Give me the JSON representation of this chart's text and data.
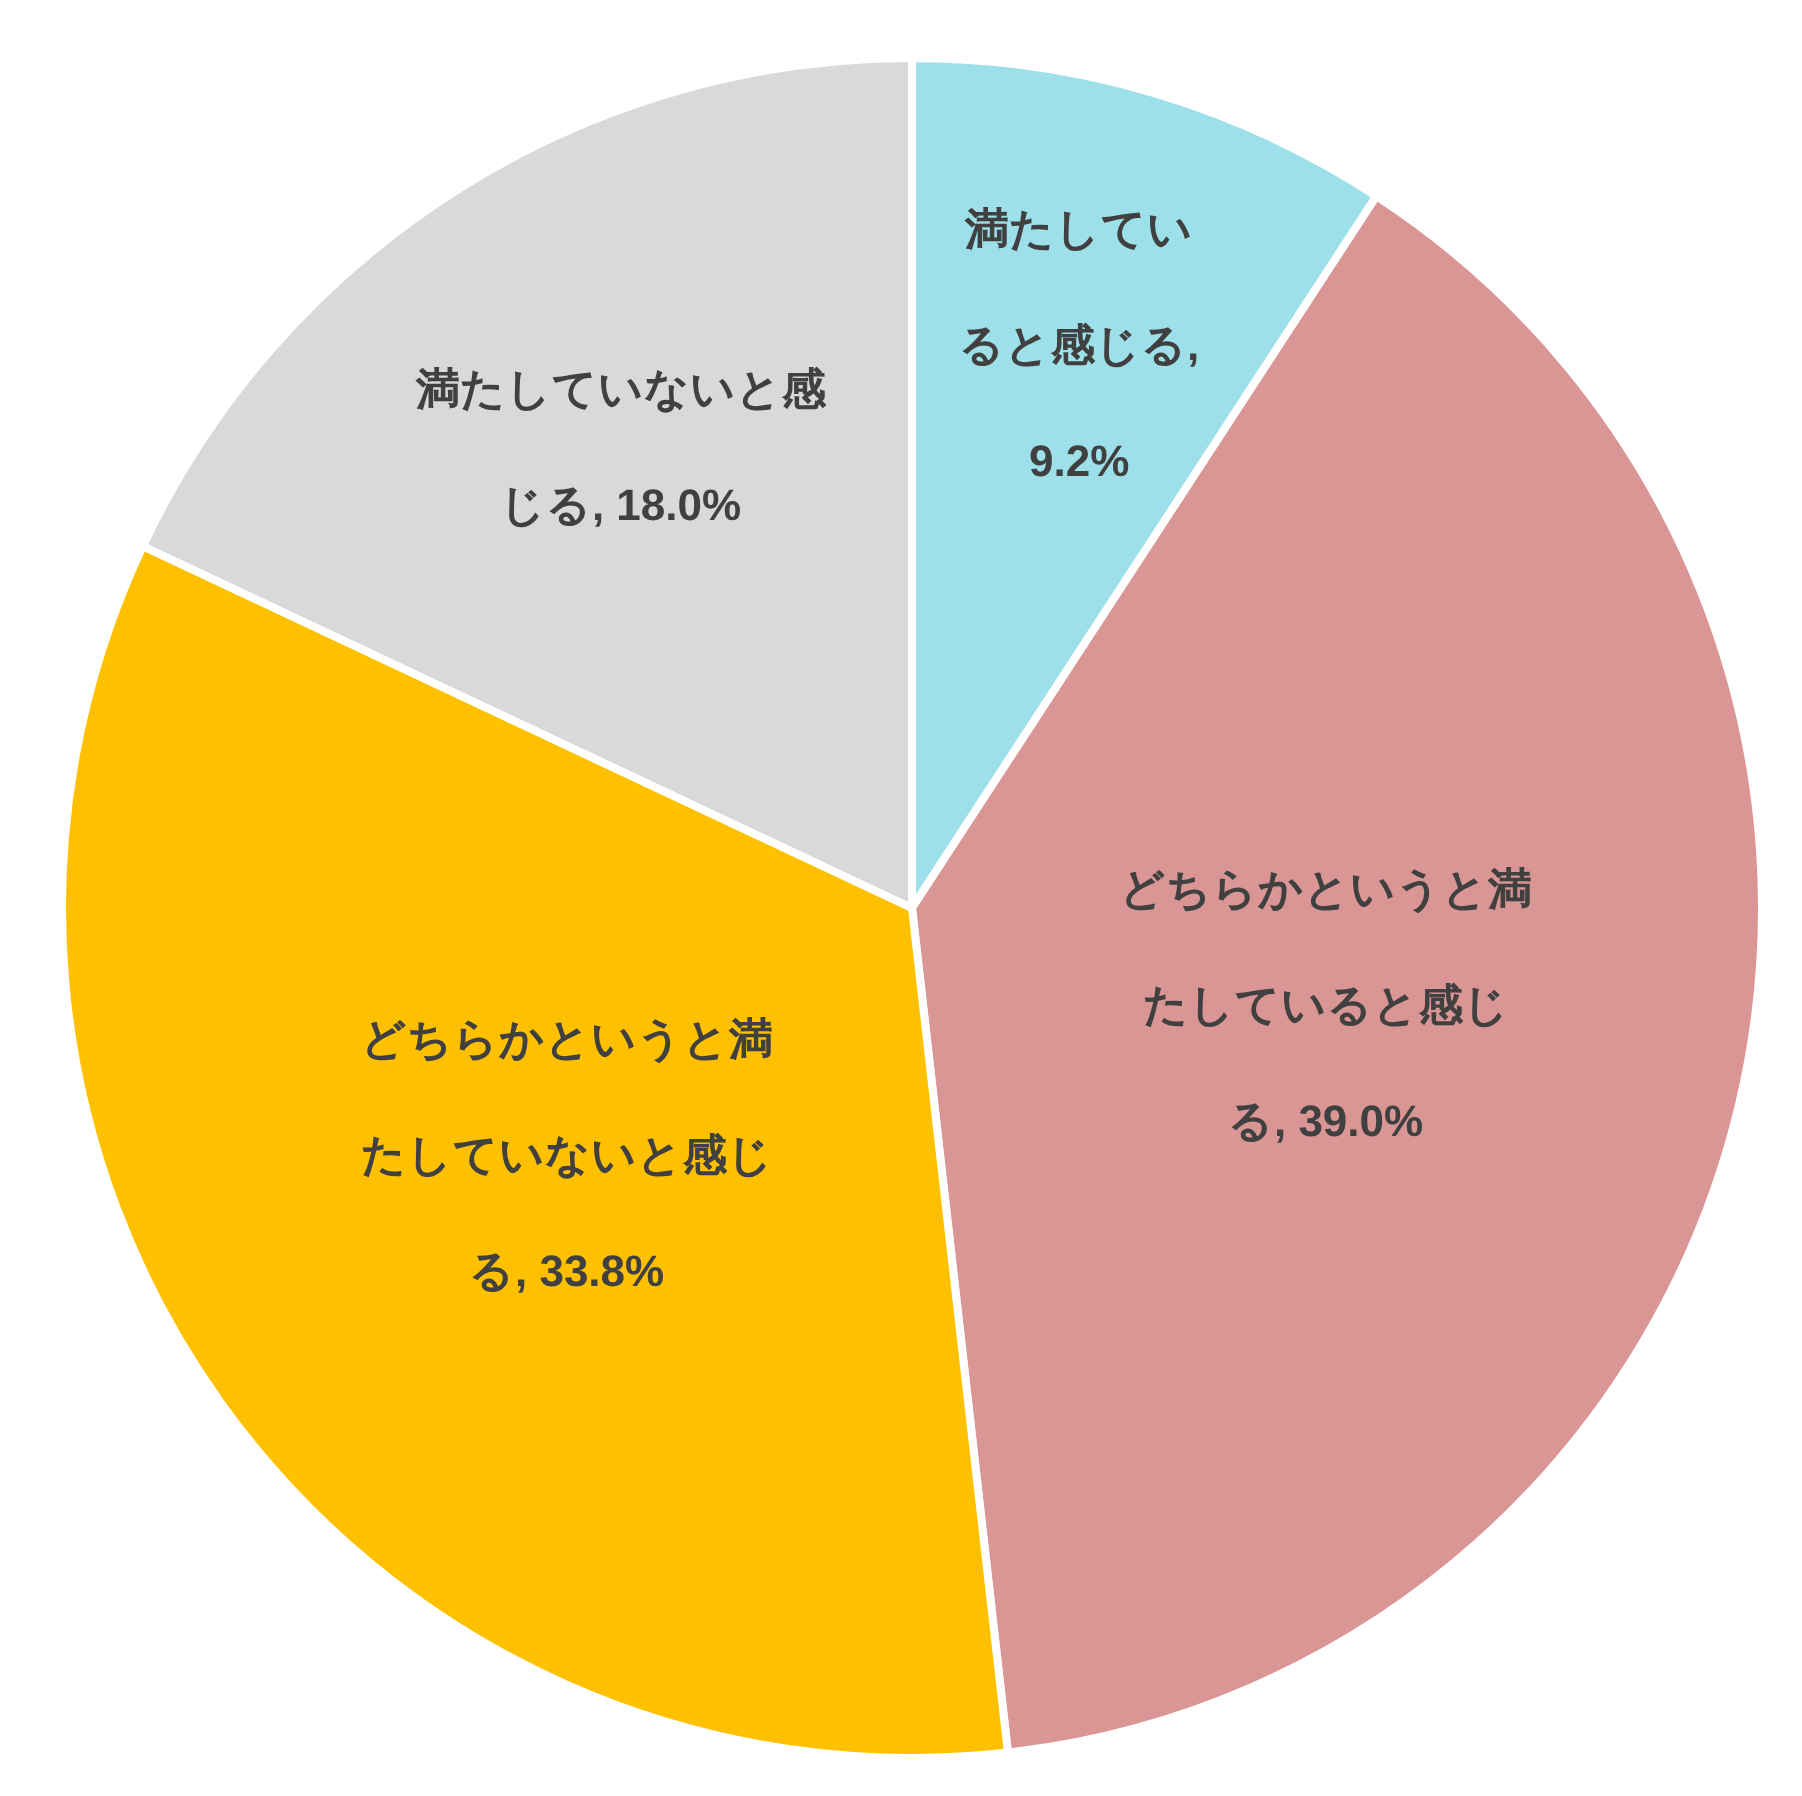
{
  "chart_data": {
    "type": "pie",
    "categories": [
      "満たしていると感じる",
      "どちらかというと満たしていると感じる",
      "どちらかというと満たしていないと感じる",
      "満たしていないと感じる"
    ],
    "values": [
      9.2,
      39.0,
      33.8,
      18.0
    ],
    "colors": [
      "#9de0ea",
      "#da9694",
      "#ffc000",
      "#d9d9d9"
    ],
    "value_labels": [
      ", 9.2%",
      ", 39.0%",
      ", 33.8%",
      ", 18.0%"
    ],
    "legend": false
  }
}
